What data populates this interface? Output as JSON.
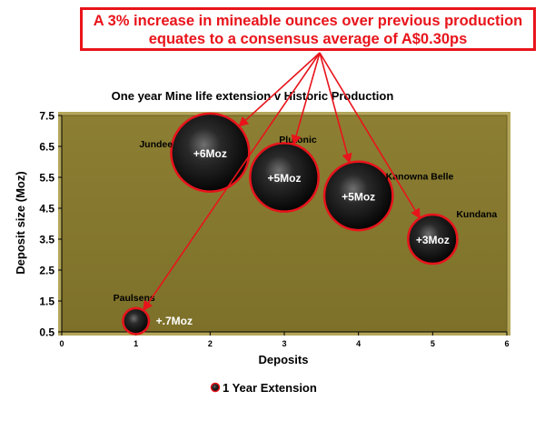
{
  "callout": {
    "line1": "A 3% increase in mineable ounces over previous production",
    "line2": "equates to a consensus average of A$0.30ps"
  },
  "colors": {
    "callout": "#e8141b",
    "plot_background": "#877a2e",
    "bubble_outline": "#e8141b",
    "arrow": "#e8141b"
  },
  "chart_data": {
    "type": "bubble",
    "title": "One year Mine life extension v Historic Production",
    "xlabel": "Deposits",
    "ylabel": "Deposit size (Moz)",
    "xlim": [
      0,
      6
    ],
    "ylim": [
      0.5,
      7.5
    ],
    "x_ticks": [
      "0",
      "1",
      "2",
      "3",
      "4",
      "5",
      "6"
    ],
    "y_ticks": [
      "0.5",
      "1.5",
      "2.5",
      "3.5",
      "4.5",
      "5.5",
      "6.5",
      "7.5"
    ],
    "legend_position": "bottom",
    "grid": false,
    "series": [
      {
        "name": "1 Year Extension",
        "points": [
          {
            "name": "Paulsens",
            "x": 1,
            "y": 0.85,
            "size": 0.7,
            "label": "+.7Moz"
          },
          {
            "name": "Jundee",
            "x": 2,
            "y": 6.3,
            "size": 6,
            "label": "+6Moz"
          },
          {
            "name": "Plutonic",
            "x": 3,
            "y": 5.5,
            "size": 5,
            "label": "+5Moz"
          },
          {
            "name": "Kanowna Belle",
            "x": 4,
            "y": 4.9,
            "size": 5,
            "label": "+5Moz"
          },
          {
            "name": "Kundana",
            "x": 5,
            "y": 3.5,
            "size": 3,
            "label": "+3Moz"
          }
        ]
      }
    ]
  }
}
